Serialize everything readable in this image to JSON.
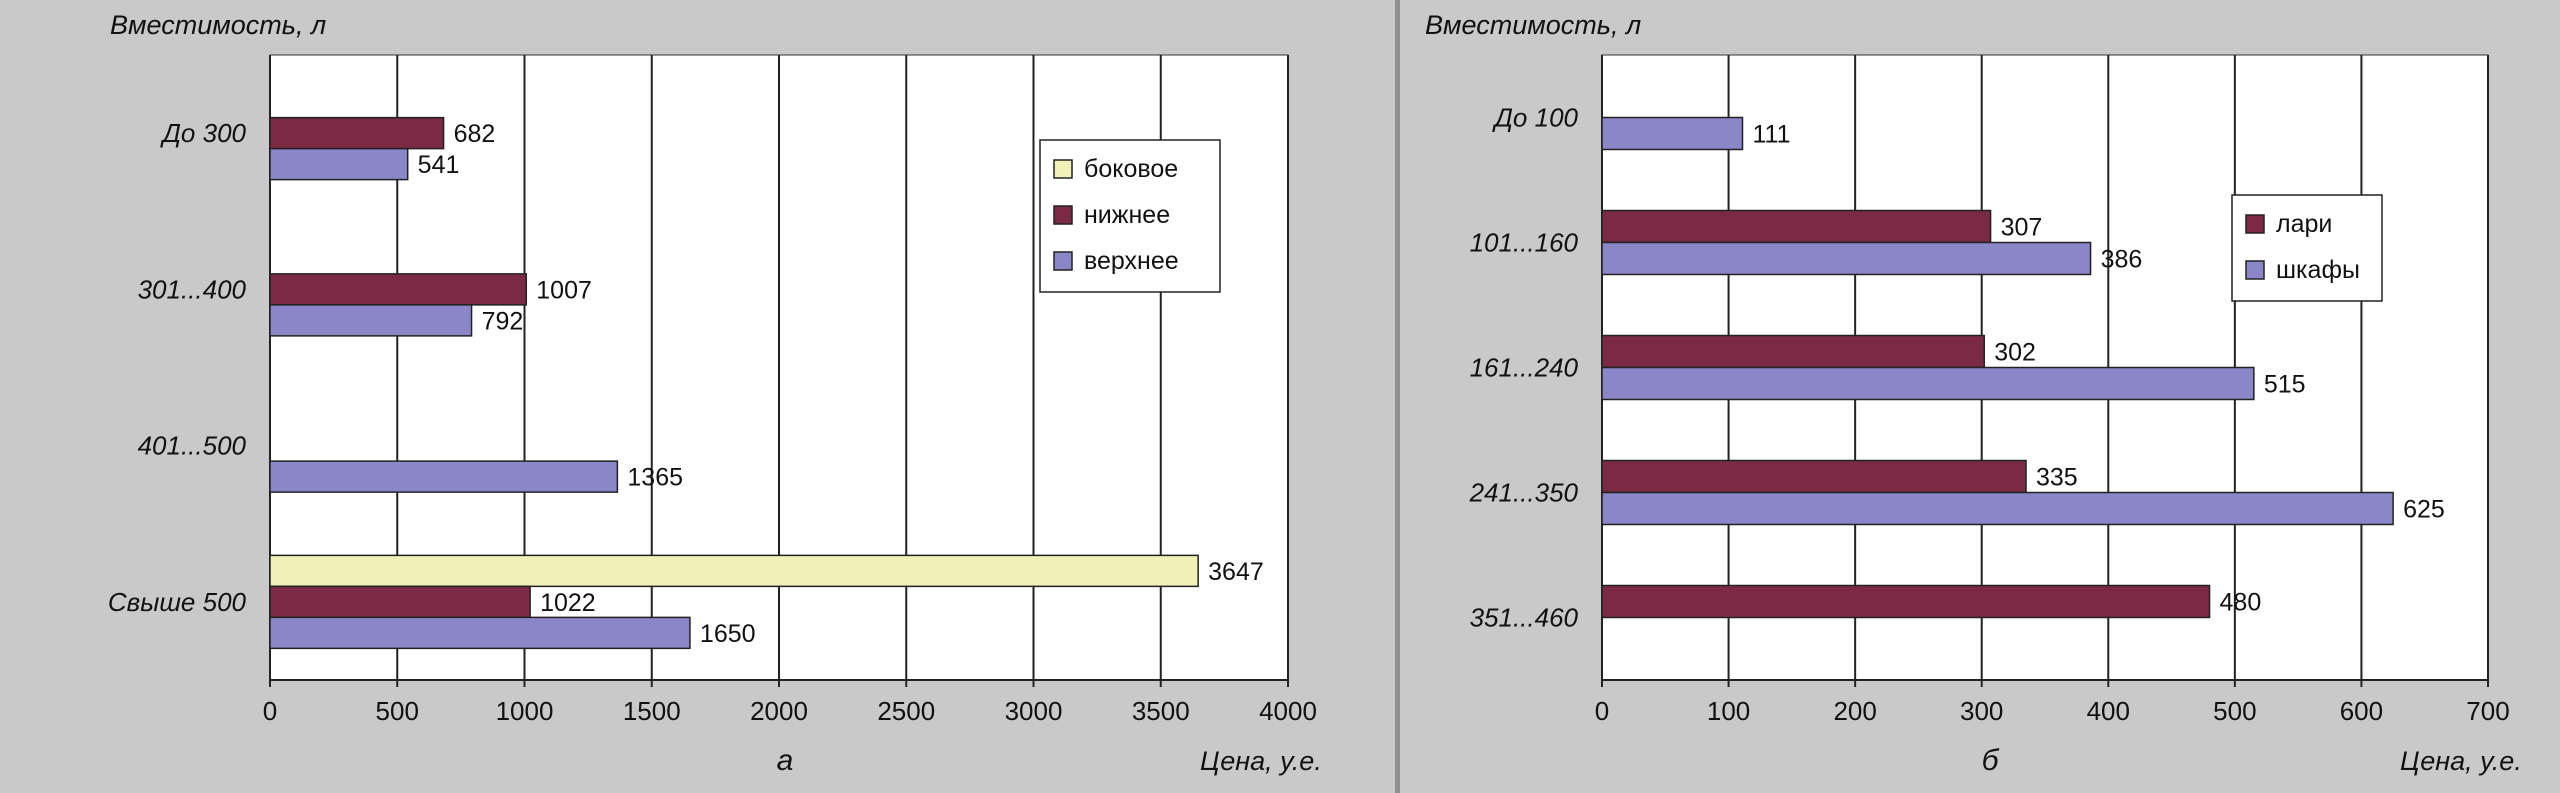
{
  "colors": {
    "background": "#c9c9c9",
    "plot_area": "#ffffff",
    "grid": "#222222",
    "side": "#f0f0b8",
    "bottom": "#7a2a45",
    "top": "#8a86c8",
    "chests": "#7a2a45",
    "cabinets": "#8a86c8"
  },
  "chart_data": [
    {
      "type": "bar",
      "orientation": "horizontal",
      "panel_letter": "а",
      "ylabel": "Вместимость, л",
      "xlabel": "Цена, у.е.",
      "categories": [
        "До 300",
        "301...400",
        "401...500",
        "Свыше 500"
      ],
      "series": [
        {
          "name": "боковое",
          "color": "#f0f0b8",
          "values": [
            null,
            null,
            null,
            3647
          ]
        },
        {
          "name": "нижнее",
          "color": "#7a2a45",
          "values": [
            682,
            1007,
            null,
            1022
          ]
        },
        {
          "name": "верхнее",
          "color": "#8a86c8",
          "values": [
            541,
            792,
            1365,
            1650
          ]
        }
      ],
      "xlim": [
        0,
        4000
      ],
      "xticks": [
        "0",
        "500",
        "1000",
        "1500",
        "2000",
        "2500",
        "3000",
        "3500",
        "4000"
      ],
      "grid": "vertical",
      "legend_position": "top-right",
      "legend": [
        "боковое",
        "нижнее",
        "верхнее"
      ]
    },
    {
      "type": "bar",
      "orientation": "horizontal",
      "panel_letter": "б",
      "ylabel": "Вместимость, л",
      "xlabel": "Цена, у.е.",
      "categories": [
        "До 100",
        "101...160",
        "161...240",
        "241...350",
        "351...460"
      ],
      "series": [
        {
          "name": "лари",
          "color": "#7a2a45",
          "values": [
            null,
            307,
            302,
            335,
            480
          ]
        },
        {
          "name": "шкафы",
          "color": "#8a86c8",
          "values": [
            111,
            386,
            515,
            625,
            null
          ]
        }
      ],
      "xlim": [
        0,
        700
      ],
      "xticks": [
        "0",
        "100",
        "200",
        "300",
        "400",
        "500",
        "600",
        "700"
      ],
      "grid": "vertical",
      "legend_position": "top-right",
      "legend": [
        "лари",
        "шкафы"
      ]
    }
  ]
}
